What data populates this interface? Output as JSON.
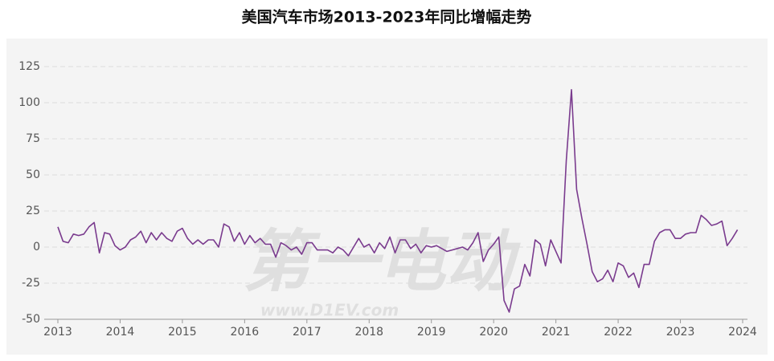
{
  "chart_data": {
    "type": "line",
    "title": "美国汽车市场2013-2023年同比增幅走势",
    "watermark": [
      "第一电动",
      "www.D1EV.com"
    ],
    "xlim": [
      2013,
      2024
    ],
    "xticks": [
      2013,
      2014,
      2015,
      2016,
      2017,
      2018,
      2019,
      2020,
      2021,
      2022,
      2023,
      2024
    ],
    "ylim": [
      -50,
      125
    ],
    "yticks": [
      -50,
      -25,
      0,
      25,
      50,
      75,
      100,
      125
    ],
    "grid": true,
    "x": [
      2013,
      2013.083,
      2013.167,
      2013.25,
      2013.333,
      2013.417,
      2013.5,
      2013.583,
      2013.667,
      2013.75,
      2013.833,
      2013.917,
      2014,
      2014.083,
      2014.167,
      2014.25,
      2014.333,
      2014.417,
      2014.5,
      2014.583,
      2014.667,
      2014.75,
      2014.833,
      2014.917,
      2015,
      2015.083,
      2015.167,
      2015.25,
      2015.333,
      2015.417,
      2015.5,
      2015.583,
      2015.667,
      2015.75,
      2015.833,
      2015.917,
      2016,
      2016.083,
      2016.167,
      2016.25,
      2016.333,
      2016.417,
      2016.5,
      2016.583,
      2016.667,
      2016.75,
      2016.833,
      2016.917,
      2017,
      2017.083,
      2017.167,
      2017.25,
      2017.333,
      2017.417,
      2017.5,
      2017.583,
      2017.667,
      2017.75,
      2017.833,
      2017.917,
      2018,
      2018.083,
      2018.167,
      2018.25,
      2018.333,
      2018.417,
      2018.5,
      2018.583,
      2018.667,
      2018.75,
      2018.833,
      2018.917,
      2019,
      2019.083,
      2019.167,
      2019.25,
      2019.333,
      2019.417,
      2019.5,
      2019.583,
      2019.667,
      2019.75,
      2019.833,
      2019.917,
      2020,
      2020.083,
      2020.167,
      2020.25,
      2020.333,
      2020.417,
      2020.5,
      2020.583,
      2020.667,
      2020.75,
      2020.833,
      2020.917,
      2021,
      2021.083,
      2021.167,
      2021.25,
      2021.333,
      2021.417,
      2021.5,
      2021.583,
      2021.667,
      2021.75,
      2021.833,
      2021.917,
      2022,
      2022.083,
      2022.167,
      2022.25,
      2022.333,
      2022.417,
      2022.5,
      2022.583,
      2022.667,
      2022.75,
      2022.833,
      2022.917,
      2023,
      2023.083,
      2023.167,
      2023.25,
      2023.333,
      2023.417,
      2023.5,
      2023.583,
      2023.667,
      2023.75,
      2023.833,
      2023.917
    ],
    "series": [
      {
        "color": "#7a3b8e",
        "values": [
          14,
          4,
          3,
          9,
          8,
          9,
          14,
          17,
          -4,
          10,
          9,
          1,
          -2,
          0,
          5,
          7,
          11,
          3,
          10,
          5,
          10,
          6,
          4,
          11,
          13,
          6,
          2,
          5,
          2,
          5,
          5,
          0,
          16,
          14,
          4,
          10,
          2,
          8,
          3,
          6,
          2,
          2,
          -7,
          3,
          1,
          -2,
          0,
          -5,
          3,
          3,
          -2,
          -2,
          -2,
          -4,
          0,
          -2,
          -6,
          0,
          6,
          0,
          2,
          -4,
          3,
          -1,
          7,
          -4,
          5,
          5,
          -1,
          2,
          -4,
          1,
          0,
          1,
          -1,
          -3,
          -2,
          -1,
          0,
          -2,
          3,
          10,
          -10,
          -2,
          2,
          7,
          -37,
          -45,
          -29,
          -27,
          -12,
          -20,
          5,
          2,
          -13,
          5,
          -3,
          -11,
          60,
          109,
          40,
          20,
          2,
          -17,
          -24,
          -22,
          -16,
          -24,
          -11,
          -13,
          -21,
          -18,
          -28,
          -12,
          -12,
          4,
          10,
          12,
          12,
          6,
          6,
          9,
          10,
          10,
          22,
          19,
          15,
          16,
          18,
          1,
          6,
          12
        ]
      }
    ]
  }
}
